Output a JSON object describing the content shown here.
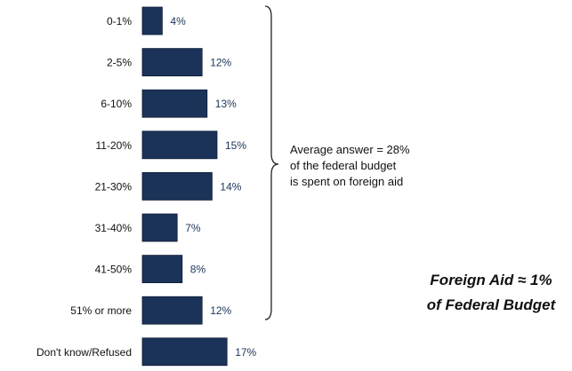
{
  "chart_data": {
    "type": "bar",
    "orientation": "horizontal",
    "categories": [
      "0-1%",
      "2-5%",
      "6-10%",
      "11-20%",
      "21-30%",
      "31-40%",
      "41-50%",
      "51% or more",
      "Don't know/Refused"
    ],
    "values": [
      4,
      12,
      13,
      15,
      14,
      7,
      8,
      12,
      17
    ],
    "data_labels": [
      "4%",
      "12%",
      "13%",
      "15%",
      "14%",
      "7%",
      "8%",
      "12%",
      "17%"
    ],
    "title": "",
    "xlabel": "",
    "ylabel": "",
    "grid": false,
    "legend": "none",
    "bar_color": "#1b3358",
    "label_color": "#1b3358",
    "annotation": {
      "lines": [
        "Average answer = 28%",
        "of the federal budget",
        "is spent on foreign aid"
      ]
    },
    "callout": {
      "lines": [
        "Foreign Aid ≈ 1%",
        "of Federal Budget"
      ]
    }
  }
}
